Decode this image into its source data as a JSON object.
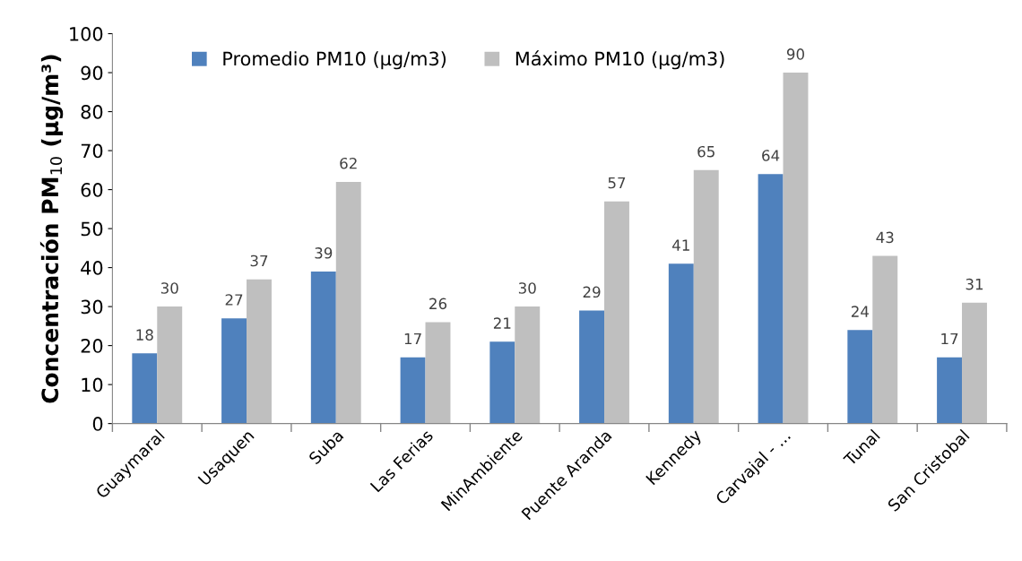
{
  "chart_data": {
    "type": "bar",
    "ylabel": "Concentración PM$_{10}$ (µg/m³)",
    "categories": [
      "Guaymaral",
      "Usaquen",
      "Suba",
      "Las Ferias",
      "MinAmbiente",
      "Puente Aranda",
      "Kennedy",
      "Carvajal - ...",
      "Tunal",
      "San Cristobal"
    ],
    "series": [
      {
        "name": "Promedio PM10 (µg/m3)",
        "color": "#4f81bd",
        "values": [
          18,
          27,
          39,
          17,
          21,
          29,
          41,
          64,
          24,
          17
        ]
      },
      {
        "name": "Máximo PM10 (µg/m3)",
        "color": "#bfbfbf",
        "values": [
          30,
          37,
          62,
          26,
          30,
          57,
          65,
          90,
          43,
          31
        ]
      }
    ],
    "ylim": [
      0,
      100
    ],
    "yticks": [
      0,
      10,
      20,
      30,
      40,
      50,
      60,
      70,
      80,
      90,
      100
    ],
    "data_labels": true,
    "legend": "top left",
    "grid": false
  }
}
